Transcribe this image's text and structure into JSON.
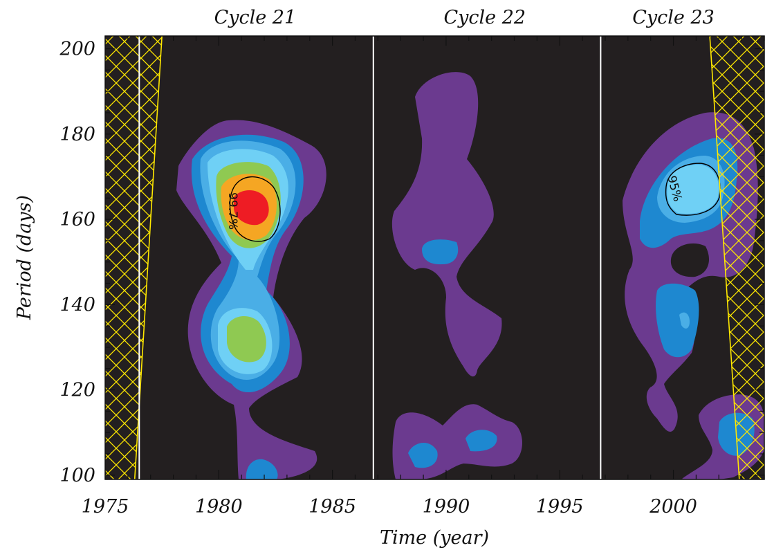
{
  "chart_data": {
    "type": "heatmap",
    "title": "",
    "xlabel": "Time (year)",
    "ylabel": "Period (days)",
    "xlim": [
      1975,
      2004
    ],
    "ylim": [
      99,
      203
    ],
    "x_ticks": [
      1975,
      1980,
      1985,
      1990,
      1995,
      2000
    ],
    "x_tick_labels": [
      "1975",
      "1980",
      "1985",
      "1990",
      "1995",
      "2000"
    ],
    "y_ticks": [
      100,
      120,
      140,
      160,
      180,
      200
    ],
    "y_tick_labels": [
      "100",
      "120",
      "140",
      "160",
      "180",
      "200"
    ],
    "grid": false,
    "background_color": "#231f20",
    "cycle_labels": [
      {
        "text": "Cycle 21",
        "x": 1981.6
      },
      {
        "text": "Cycle 22",
        "x": 1991.7
      },
      {
        "text": "Cycle 23",
        "x": 2000
      },
      {
        "text": "",
        "x": 0
      }
    ],
    "cycle_boundaries": [
      1976.5,
      1986.8,
      1996.8
    ],
    "cone_of_influence": {
      "color": "#ffe800",
      "left_edge": [
        [
          1976.3,
          99
        ],
        [
          1977.5,
          203
        ]
      ],
      "right_edge": [
        [
          2001.6,
          203
        ],
        [
          2002.9,
          99
        ]
      ]
    },
    "contour_colors": [
      "#6b3a8f",
      "#1e88d0",
      "#4aaee6",
      "#6fd0f5",
      "#8fc952",
      "#f5a623",
      "#ee1c24"
    ],
    "contour_levels": [
      1,
      2,
      3,
      4,
      5,
      6,
      7
    ],
    "features": [
      {
        "x": 1981.7,
        "y": 163,
        "peak_level": 7
      },
      {
        "x": 1981.3,
        "y": 132,
        "peak_level": 5
      },
      {
        "x": 1981.3,
        "y": 103,
        "peak_level": 2
      },
      {
        "x": 1989.7,
        "y": 160,
        "peak_level": 1
      },
      {
        "x": 1989.6,
        "y": 153,
        "peak_level": 2
      },
      {
        "x": 1990.8,
        "y": 107,
        "peak_level": 2
      },
      {
        "x": 1989.1,
        "y": 106,
        "peak_level": 2
      },
      {
        "x": 2000.9,
        "y": 167,
        "peak_level": 4
      },
      {
        "x": 2000.3,
        "y": 137,
        "peak_level": 3
      },
      {
        "x": 2003,
        "y": 111,
        "peak_level": 2
      }
    ],
    "significance_contours": [
      {
        "label": "99.7%",
        "x": 1981.7,
        "y": 163
      },
      {
        "label": "95%",
        "x": 2000.9,
        "y": 167
      }
    ]
  }
}
